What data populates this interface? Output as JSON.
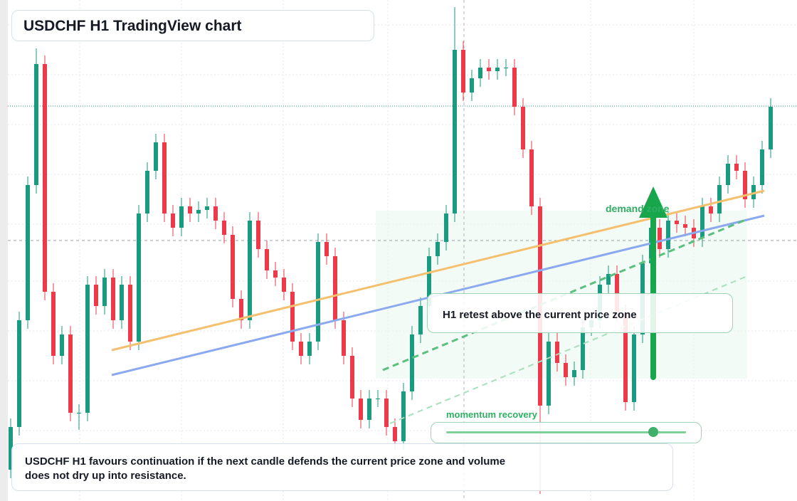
{
  "chart_data": {
    "type": "candlestick",
    "title": "USDCHF H1 TradingView chart",
    "ylim": [
      0,
      704
    ],
    "first_open": 44,
    "close": [
      104,
      254,
      444,
      614,
      294,
      204,
      234,
      124,
      124,
      304,
      274,
      314,
      254,
      304,
      224,
      404,
      464,
      504,
      404,
      384,
      414,
      404,
      409,
      414,
      394,
      374,
      284,
      254,
      394,
      354,
      324,
      314,
      294,
      224,
      204,
      224,
      364,
      344,
      254,
      204,
      144,
      114,
      144,
      144,
      104,
      84,
      154,
      234,
      274,
      344,
      364,
      404,
      634,
      574,
      594,
      609,
      604,
      609,
      609,
      554,
      494,
      414,
      134,
      224,
      194,
      174,
      184,
      244,
      254,
      304,
      319,
      264,
      139,
      234,
      334,
      384,
      354,
      394,
      389,
      384,
      369,
      414,
      404,
      444,
      474,
      464,
      424,
      444,
      494,
      554
    ],
    "high": [
      116,
      266,
      456,
      636,
      626,
      306,
      246,
      246,
      136,
      316,
      316,
      326,
      326,
      316,
      316,
      416,
      476,
      516,
      516,
      416,
      426,
      426,
      421,
      426,
      426,
      406,
      386,
      296,
      406,
      406,
      366,
      336,
      326,
      306,
      236,
      236,
      376,
      376,
      356,
      266,
      216,
      156,
      156,
      156,
      156,
      116,
      166,
      246,
      286,
      356,
      376,
      416,
      694,
      646,
      606,
      621,
      621,
      621,
      621,
      621,
      566,
      506,
      426,
      236,
      236,
      206,
      196,
      256,
      266,
      316,
      331,
      331,
      276,
      246,
      346,
      396,
      396,
      406,
      406,
      401,
      396,
      426,
      426,
      456,
      486,
      486,
      476,
      456,
      506,
      566
    ],
    "low": [
      32,
      92,
      242,
      432,
      282,
      192,
      192,
      112,
      100,
      112,
      262,
      262,
      242,
      242,
      212,
      212,
      392,
      452,
      392,
      372,
      372,
      392,
      392,
      397,
      382,
      362,
      272,
      242,
      242,
      342,
      312,
      302,
      282,
      212,
      192,
      192,
      212,
      332,
      242,
      192,
      132,
      102,
      102,
      132,
      92,
      72,
      72,
      142,
      222,
      262,
      332,
      352,
      392,
      562,
      562,
      582,
      592,
      592,
      597,
      542,
      482,
      402,
      10,
      122,
      182,
      162,
      162,
      172,
      232,
      242,
      292,
      252,
      127,
      127,
      222,
      322,
      342,
      342,
      377,
      372,
      357,
      357,
      392,
      392,
      432,
      452,
      412,
      412,
      432,
      482
    ],
    "up_color": "#1a9a7f",
    "down_color": "#ec3a4b",
    "annotations": {
      "zone": "demand zone",
      "retest": "H1 retest above the current price zone",
      "momentum": "momentum recovery"
    },
    "note": "USDCHF H1 favours continuation if the next candle defends the current price zone and volume does not dry up into resistance."
  }
}
